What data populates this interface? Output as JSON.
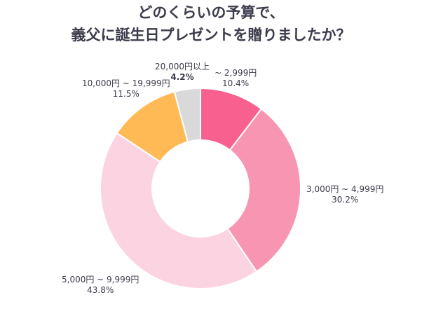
{
  "title_line1": "どのくらいの予算で、",
  "title_line2": "義父に誕生日プレゼントを贈りましたか？",
  "chart_data": {
    "type": "pie",
    "title": "どのくらいの予算で、義父に誕生日プレゼントを贈りましたか？",
    "donut": true,
    "slices": [
      {
        "label": "~ 2,999円",
        "percent_label": "10.4%",
        "value": 10.4,
        "color": "#f8618f"
      },
      {
        "label": "3,000円 ~ 4,999円",
        "percent_label": "30.2%",
        "value": 30.2,
        "color": "#f795b3"
      },
      {
        "label": "5,000円 ~ 9,999円",
        "percent_label": "43.8%",
        "value": 43.8,
        "color": "#fcd3e0"
      },
      {
        "label": "10,000円 ~ 19,999円",
        "percent_label": "11.5%",
        "value": 11.5,
        "color": "#ffba56"
      },
      {
        "label": "20,000円以上",
        "percent_label": "4.2%",
        "value": 4.2,
        "color": "#d9d9d9"
      }
    ]
  }
}
